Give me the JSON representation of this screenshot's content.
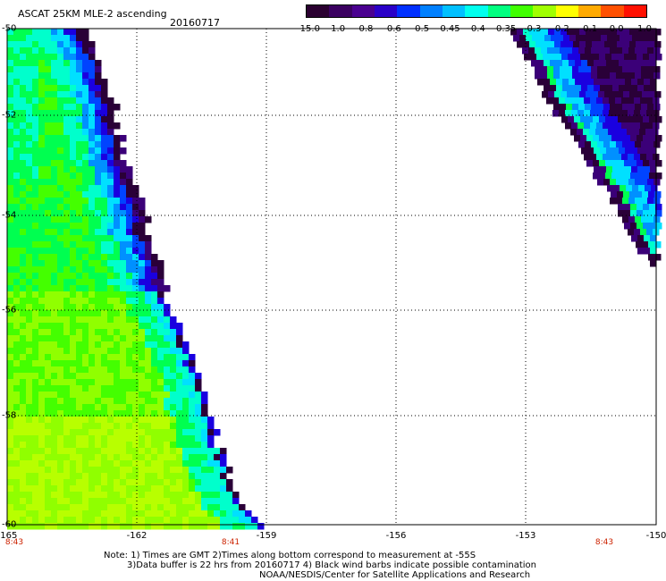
{
  "header": {
    "title": "ASCAT 25KM MLE-2 ascending",
    "date": "20160717"
  },
  "colorbar": {
    "labels": [
      "-15.0",
      "-1.0",
      "-0.8",
      "-0.6",
      "-0.5",
      "-0.45",
      "-0.4",
      "-0.35",
      "-0.3",
      "-0.2",
      "-0.1",
      "0.0",
      "1.0"
    ],
    "colors": [
      "#2a0030",
      "#3a0060",
      "#4a0090",
      "#2a00c8",
      "#0030ff",
      "#0080ff",
      "#00c0ff",
      "#00ffee",
      "#00ff80",
      "#40ff00",
      "#a0ff00",
      "#ffff00",
      "#ffaa00",
      "#ff5000",
      "#ff1000"
    ]
  },
  "axes": {
    "y_ticks": [
      "-50",
      "-52",
      "-54",
      "-56",
      "-58",
      "-60"
    ],
    "x_ticks": [
      "-165",
      "-162",
      "-159",
      "-156",
      "-153",
      "-150"
    ]
  },
  "time_labels": [
    "8:43",
    "8:41",
    "8:43"
  ],
  "notes": {
    "line1": "Note: 1) Times are GMT 2)Times along bottom correspond to measurement at -55S",
    "line2": "3)Data buffer is 22 hrs from 20160717 4) Black wind barbs indicate possible contamination",
    "line3": "NOAA/NESDIS/Center for Satellite Applications and Research"
  }
}
